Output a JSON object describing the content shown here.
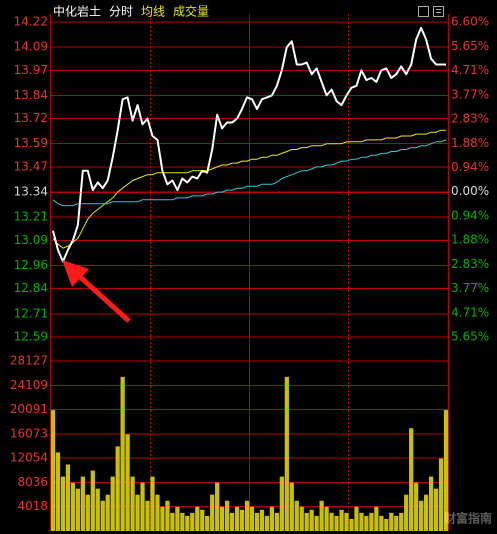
{
  "chart_data": [
    {
      "type": "line",
      "title": "中化岩土",
      "subtitle": "分时",
      "series": [
        {
          "color": "#ffffff",
          "values": [
            13.14,
            13.04,
            12.98,
            13.04,
            13.09,
            13.17,
            13.45,
            13.45,
            13.35,
            13.39,
            13.36,
            13.4,
            13.52,
            13.66,
            13.82,
            13.83,
            13.71,
            13.79,
            13.69,
            13.72,
            13.63,
            13.61,
            13.45,
            13.38,
            13.4,
            13.35,
            13.41,
            13.39,
            13.42,
            13.41,
            13.45,
            13.44,
            13.56,
            13.74,
            13.67,
            13.7,
            13.7,
            13.72,
            13.77,
            13.83,
            13.82,
            13.77,
            13.82,
            13.83,
            13.84,
            13.89,
            13.97,
            14.09,
            14.12,
            14.0,
            14.0,
            14.01,
            13.95,
            13.98,
            13.91,
            13.84,
            13.87,
            13.81,
            13.79,
            13.84,
            13.88,
            13.89,
            13.97,
            13.92,
            13.93,
            13.91,
            13.97,
            13.98,
            13.93,
            13.95,
            13.99,
            13.95,
            14.0,
            14.13,
            14.19,
            14.13,
            14.03,
            14.0,
            14.0,
            14.0
          ]
        },
        {
          "name": "均线",
          "color": "#e8e800",
          "values": [
            13.1,
            13.07,
            13.05,
            13.06,
            13.08,
            13.1,
            13.15,
            13.2,
            13.23,
            13.25,
            13.27,
            13.29,
            13.31,
            13.34,
            13.36,
            13.38,
            13.4,
            13.41,
            13.42,
            13.43,
            13.43,
            13.44,
            13.44,
            13.44,
            13.44,
            13.44,
            13.44,
            13.44,
            13.45,
            13.45,
            13.45,
            13.45,
            13.46,
            13.47,
            13.48,
            13.48,
            13.49,
            13.49,
            13.5,
            13.5,
            13.51,
            13.51,
            13.52,
            13.52,
            13.53,
            13.53,
            13.54,
            13.55,
            13.56,
            13.56,
            13.57,
            13.57,
            13.58,
            13.58,
            13.58,
            13.59,
            13.59,
            13.59,
            13.59,
            13.6,
            13.6,
            13.6,
            13.6,
            13.61,
            13.61,
            13.61,
            13.61,
            13.62,
            13.62,
            13.62,
            13.63,
            13.63,
            13.63,
            13.64,
            13.64,
            13.64,
            13.65,
            13.65,
            13.66,
            13.66
          ]
        },
        {
          "color": "#30c8d8",
          "values": [
            13.3,
            13.28,
            13.27,
            13.27,
            13.27,
            13.28,
            13.28,
            13.28,
            13.28,
            13.28,
            13.28,
            13.28,
            13.29,
            13.29,
            13.29,
            13.29,
            13.29,
            13.29,
            13.3,
            13.3,
            13.3,
            13.3,
            13.3,
            13.3,
            13.3,
            13.31,
            13.31,
            13.31,
            13.32,
            13.32,
            13.32,
            13.33,
            13.33,
            13.34,
            13.34,
            13.35,
            13.35,
            13.36,
            13.36,
            13.37,
            13.37,
            13.37,
            13.38,
            13.38,
            13.38,
            13.39,
            13.41,
            13.42,
            13.43,
            13.44,
            13.45,
            13.45,
            13.46,
            13.47,
            13.47,
            13.48,
            13.48,
            13.49,
            13.5,
            13.5,
            13.51,
            13.51,
            13.52,
            13.52,
            13.53,
            13.53,
            13.54,
            13.54,
            13.55,
            13.55,
            13.56,
            13.56,
            13.57,
            13.57,
            13.58,
            13.58,
            13.59,
            13.6,
            13.6,
            13.61
          ]
        }
      ],
      "ylim": [
        12.59,
        14.22
      ],
      "yticks": [
        14.22,
        14.09,
        13.97,
        13.84,
        13.72,
        13.59,
        13.47,
        13.34,
        13.21,
        13.09,
        12.96,
        12.84,
        12.71,
        12.59
      ],
      "y2lim": [
        -5.65,
        6.6
      ],
      "y2ticks": [
        {
          "value": 6.6,
          "label": "6.60%"
        },
        {
          "value": 5.65,
          "label": "5.65%"
        },
        {
          "value": 4.71,
          "label": "4.71%"
        },
        {
          "value": 3.77,
          "label": "3.77%"
        },
        {
          "value": 2.83,
          "label": "2.83%"
        },
        {
          "value": 1.88,
          "label": "1.88%"
        },
        {
          "value": 0.94,
          "label": "0.94%"
        },
        {
          "value": 0,
          "label": "0.00%"
        },
        {
          "value": -0.94,
          "label": "0.94%"
        },
        {
          "value": -1.88,
          "label": "1.88%"
        },
        {
          "value": -2.83,
          "label": "2.83%"
        },
        {
          "value": -3.77,
          "label": "3.77%"
        },
        {
          "value": -4.71,
          "label": "4.71%"
        },
        {
          "value": -5.65,
          "label": "5.65%"
        }
      ],
      "grid": true
    },
    {
      "type": "bar",
      "title": "成交量",
      "color": "#c8c000",
      "values": [
        20000,
        13000,
        9000,
        11000,
        8000,
        7000,
        9000,
        6000,
        10000,
        7000,
        5000,
        6000,
        9000,
        14000,
        25500,
        16000,
        9000,
        6000,
        8000,
        5000,
        9000,
        6000,
        4000,
        5000,
        3000,
        4000,
        3000,
        2500,
        3000,
        4000,
        3500,
        2500,
        6000,
        8000,
        4000,
        5000,
        3000,
        4000,
        3500,
        5000,
        4000,
        3000,
        3500,
        2500,
        4000,
        3000,
        9000,
        25500,
        8000,
        5000,
        4000,
        3000,
        3500,
        2500,
        5000,
        4000,
        3000,
        2500,
        3500,
        3000,
        2000,
        4000,
        3000,
        2500,
        3000,
        4000,
        2500,
        2000,
        3000,
        2500,
        3000,
        6000,
        17000,
        8000,
        5000,
        6000,
        9000,
        7000,
        12000,
        20000
      ],
      "ylim": [
        0,
        28127
      ],
      "yticks": [
        28127,
        24109,
        20091,
        16073,
        12054,
        8036,
        4018
      ],
      "grid": true,
      "annotations": [
        "财富指南"
      ]
    }
  ]
}
